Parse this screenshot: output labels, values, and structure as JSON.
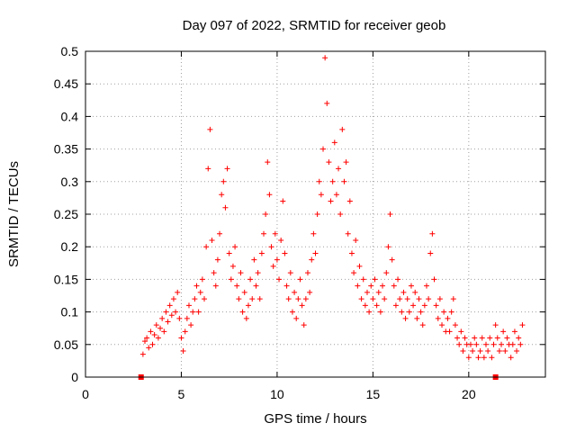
{
  "chart_data": {
    "type": "scatter",
    "title": "Day 097 of 2022, SRMTID for receiver geob",
    "xlabel": "GPS time / hours",
    "ylabel": "SRMTID / TECUs",
    "xlim": [
      0,
      24
    ],
    "ylim": [
      0,
      0.5
    ],
    "xticks": [
      0,
      5,
      10,
      15,
      20
    ],
    "yticks": [
      0,
      0.05,
      0.1,
      0.15,
      0.2,
      0.25,
      0.3,
      0.35,
      0.4,
      0.45,
      0.5
    ],
    "xtick_labels": [
      "0",
      "5",
      "10",
      "15",
      "20"
    ],
    "ytick_labels": [
      "0",
      "0.05",
      "0.1",
      "0.15",
      "0.2",
      "0.25",
      "0.3",
      "0.35",
      "0.4",
      "0.45",
      "0.5"
    ],
    "grid": true,
    "marker": "+",
    "color": "#ff0000",
    "zero_markers": [
      {
        "x": 2.9,
        "y": 0
      },
      {
        "x": 21.4,
        "y": 0
      }
    ],
    "series": [
      {
        "name": "SRMTID",
        "points": [
          [
            3.0,
            0.035
          ],
          [
            3.1,
            0.055
          ],
          [
            3.2,
            0.06
          ],
          [
            3.3,
            0.045
          ],
          [
            3.4,
            0.07
          ],
          [
            3.5,
            0.05
          ],
          [
            3.6,
            0.065
          ],
          [
            3.7,
            0.08
          ],
          [
            3.8,
            0.06
          ],
          [
            3.9,
            0.075
          ],
          [
            4.0,
            0.09
          ],
          [
            4.1,
            0.07
          ],
          [
            4.2,
            0.1
          ],
          [
            4.3,
            0.085
          ],
          [
            4.4,
            0.11
          ],
          [
            4.5,
            0.095
          ],
          [
            4.6,
            0.12
          ],
          [
            4.7,
            0.1
          ],
          [
            4.8,
            0.13
          ],
          [
            4.9,
            0.09
          ],
          [
            5.0,
            0.06
          ],
          [
            5.1,
            0.04
          ],
          [
            5.2,
            0.07
          ],
          [
            5.3,
            0.09
          ],
          [
            5.4,
            0.11
          ],
          [
            5.5,
            0.08
          ],
          [
            5.6,
            0.1
          ],
          [
            5.7,
            0.12
          ],
          [
            5.8,
            0.14
          ],
          [
            5.9,
            0.1
          ],
          [
            6.0,
            0.13
          ],
          [
            6.1,
            0.15
          ],
          [
            6.2,
            0.12
          ],
          [
            6.3,
            0.2
          ],
          [
            6.4,
            0.32
          ],
          [
            6.5,
            0.38
          ],
          [
            6.6,
            0.21
          ],
          [
            6.7,
            0.16
          ],
          [
            6.8,
            0.14
          ],
          [
            6.9,
            0.18
          ],
          [
            7.0,
            0.22
          ],
          [
            7.1,
            0.28
          ],
          [
            7.2,
            0.3
          ],
          [
            7.3,
            0.26
          ],
          [
            7.4,
            0.32
          ],
          [
            7.5,
            0.19
          ],
          [
            7.6,
            0.15
          ],
          [
            7.7,
            0.17
          ],
          [
            7.8,
            0.2
          ],
          [
            7.9,
            0.14
          ],
          [
            8.0,
            0.12
          ],
          [
            8.1,
            0.16
          ],
          [
            8.2,
            0.1
          ],
          [
            8.3,
            0.13
          ],
          [
            8.4,
            0.09
          ],
          [
            8.5,
            0.11
          ],
          [
            8.6,
            0.15
          ],
          [
            8.7,
            0.12
          ],
          [
            8.8,
            0.18
          ],
          [
            8.9,
            0.14
          ],
          [
            9.0,
            0.16
          ],
          [
            9.1,
            0.12
          ],
          [
            9.2,
            0.19
          ],
          [
            9.3,
            0.22
          ],
          [
            9.4,
            0.25
          ],
          [
            9.5,
            0.33
          ],
          [
            9.6,
            0.28
          ],
          [
            9.7,
            0.2
          ],
          [
            9.8,
            0.17
          ],
          [
            9.9,
            0.22
          ],
          [
            10.0,
            0.18
          ],
          [
            10.1,
            0.15
          ],
          [
            10.2,
            0.21
          ],
          [
            10.3,
            0.27
          ],
          [
            10.4,
            0.19
          ],
          [
            10.5,
            0.14
          ],
          [
            10.6,
            0.12
          ],
          [
            10.7,
            0.16
          ],
          [
            10.8,
            0.1
          ],
          [
            10.9,
            0.13
          ],
          [
            11.0,
            0.09
          ],
          [
            11.1,
            0.12
          ],
          [
            11.2,
            0.15
          ],
          [
            11.3,
            0.11
          ],
          [
            11.4,
            0.08
          ],
          [
            11.5,
            0.12
          ],
          [
            11.6,
            0.16
          ],
          [
            11.7,
            0.13
          ],
          [
            11.8,
            0.18
          ],
          [
            11.9,
            0.22
          ],
          [
            12.0,
            0.19
          ],
          [
            12.1,
            0.25
          ],
          [
            12.2,
            0.3
          ],
          [
            12.3,
            0.28
          ],
          [
            12.4,
            0.35
          ],
          [
            12.5,
            0.49
          ],
          [
            12.6,
            0.42
          ],
          [
            12.7,
            0.33
          ],
          [
            12.8,
            0.27
          ],
          [
            12.9,
            0.3
          ],
          [
            13.0,
            0.36
          ],
          [
            13.1,
            0.28
          ],
          [
            13.2,
            0.32
          ],
          [
            13.3,
            0.25
          ],
          [
            13.4,
            0.38
          ],
          [
            13.5,
            0.3
          ],
          [
            13.6,
            0.33
          ],
          [
            13.7,
            0.22
          ],
          [
            13.8,
            0.27
          ],
          [
            13.9,
            0.19
          ],
          [
            14.0,
            0.16
          ],
          [
            14.1,
            0.21
          ],
          [
            14.2,
            0.14
          ],
          [
            14.3,
            0.17
          ],
          [
            14.4,
            0.12
          ],
          [
            14.5,
            0.15
          ],
          [
            14.6,
            0.11
          ],
          [
            14.7,
            0.13
          ],
          [
            14.8,
            0.1
          ],
          [
            14.9,
            0.14
          ],
          [
            15.0,
            0.12
          ],
          [
            15.1,
            0.15
          ],
          [
            15.2,
            0.11
          ],
          [
            15.3,
            0.13
          ],
          [
            15.4,
            0.1
          ],
          [
            15.5,
            0.14
          ],
          [
            15.6,
            0.12
          ],
          [
            15.7,
            0.16
          ],
          [
            15.8,
            0.2
          ],
          [
            15.9,
            0.25
          ],
          [
            16.0,
            0.18
          ],
          [
            16.1,
            0.14
          ],
          [
            16.2,
            0.11
          ],
          [
            16.3,
            0.15
          ],
          [
            16.4,
            0.12
          ],
          [
            16.5,
            0.1
          ],
          [
            16.6,
            0.13
          ],
          [
            16.7,
            0.09
          ],
          [
            16.8,
            0.12
          ],
          [
            16.9,
            0.1
          ],
          [
            17.0,
            0.14
          ],
          [
            17.1,
            0.11
          ],
          [
            17.2,
            0.13
          ],
          [
            17.3,
            0.09
          ],
          [
            17.4,
            0.12
          ],
          [
            17.5,
            0.1
          ],
          [
            17.6,
            0.08
          ],
          [
            17.7,
            0.11
          ],
          [
            17.8,
            0.14
          ],
          [
            17.9,
            0.12
          ],
          [
            18.0,
            0.19
          ],
          [
            18.1,
            0.22
          ],
          [
            18.2,
            0.15
          ],
          [
            18.3,
            0.11
          ],
          [
            18.4,
            0.09
          ],
          [
            18.5,
            0.12
          ],
          [
            18.6,
            0.08
          ],
          [
            18.7,
            0.1
          ],
          [
            18.8,
            0.07
          ],
          [
            18.9,
            0.09
          ],
          [
            19.0,
            0.07
          ],
          [
            19.1,
            0.1
          ],
          [
            19.2,
            0.12
          ],
          [
            19.3,
            0.08
          ],
          [
            19.4,
            0.06
          ],
          [
            19.5,
            0.05
          ],
          [
            19.6,
            0.07
          ],
          [
            19.7,
            0.04
          ],
          [
            19.8,
            0.06
          ],
          [
            19.9,
            0.05
          ],
          [
            20.0,
            0.03
          ],
          [
            20.1,
            0.05
          ],
          [
            20.2,
            0.04
          ],
          [
            20.3,
            0.06
          ],
          [
            20.4,
            0.05
          ],
          [
            20.5,
            0.03
          ],
          [
            20.6,
            0.04
          ],
          [
            20.7,
            0.06
          ],
          [
            20.8,
            0.03
          ],
          [
            20.9,
            0.05
          ],
          [
            21.0,
            0.04
          ],
          [
            21.1,
            0.06
          ],
          [
            21.2,
            0.03
          ],
          [
            21.3,
            0.05
          ],
          [
            21.4,
            0.08
          ],
          [
            21.5,
            0.06
          ],
          [
            21.6,
            0.04
          ],
          [
            21.7,
            0.05
          ],
          [
            21.8,
            0.07
          ],
          [
            21.9,
            0.04
          ],
          [
            22.0,
            0.06
          ],
          [
            22.1,
            0.05
          ],
          [
            22.2,
            0.03
          ],
          [
            22.3,
            0.05
          ],
          [
            22.4,
            0.07
          ],
          [
            22.5,
            0.04
          ],
          [
            22.6,
            0.06
          ],
          [
            22.7,
            0.05
          ],
          [
            22.8,
            0.08
          ]
        ]
      }
    ]
  }
}
